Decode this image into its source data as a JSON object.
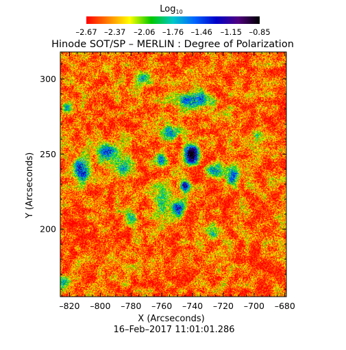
{
  "chart_data": {
    "type": "heatmap",
    "title": "Hinode SOT/SP – MERLIN : Degree of Polarization",
    "xlabel": "X (Arcseconds)",
    "ylabel": "Y (Arcseconds)",
    "date_label": "16–Feb–2017 11:01:01.286",
    "xlim": [
      -826,
      -679
    ],
    "ylim": [
      155,
      318
    ],
    "x_ticks": [
      -820,
      -800,
      -780,
      -760,
      -740,
      -720,
      -700,
      -680
    ],
    "x_tick_labels": [
      "–820",
      "–800",
      "–780",
      "–760",
      "–740",
      "–720",
      "–700",
      "–680"
    ],
    "y_ticks": [
      200,
      250,
      300
    ],
    "y_tick_labels": [
      "200",
      "250",
      "300"
    ],
    "colorbar": {
      "title": "Log",
      "title_subscript": "10",
      "range": [
        -2.67,
        -0.85
      ],
      "tick_values": [
        -2.67,
        -2.37,
        -2.06,
        -1.76,
        -1.46,
        -1.15,
        -0.85
      ],
      "tick_labels": [
        "–2.67",
        "–2.37",
        "–2.06",
        "–1.76",
        "–1.46",
        "–1.15",
        "–0.85"
      ],
      "colormap": [
        "#ff0000",
        "#ff8000",
        "#ffff00",
        "#00c800",
        "#00c8c8",
        "#0064ff",
        "#0000c8",
        "#500080",
        "#000000"
      ]
    },
    "features": [
      {
        "x": -741,
        "y": 250,
        "sx": 3.2,
        "sy": 4.5,
        "amp": 1.85
      },
      {
        "x": -745,
        "y": 229,
        "sx": 2.2,
        "sy": 2.5,
        "amp": 1.3
      },
      {
        "x": -749,
        "y": 214,
        "sx": 2.5,
        "sy": 3.5,
        "amp": 1.3
      },
      {
        "x": -812,
        "y": 240,
        "sx": 4.5,
        "sy": 6,
        "amp": 1.15
      },
      {
        "x": -796,
        "y": 251,
        "sx": 4,
        "sy": 5,
        "amp": 1.05
      },
      {
        "x": -740,
        "y": 286,
        "sx": 8,
        "sy": 4,
        "amp": 1.15
      },
      {
        "x": -754,
        "y": 265,
        "sx": 3.5,
        "sy": 3,
        "amp": 0.95
      },
      {
        "x": -761,
        "y": 246,
        "sx": 3,
        "sy": 3,
        "amp": 1.0
      },
      {
        "x": -714,
        "y": 235,
        "sx": 3,
        "sy": 4.5,
        "amp": 1.0
      },
      {
        "x": -725,
        "y": 240,
        "sx": 4,
        "sy": 3,
        "amp": 0.85
      },
      {
        "x": -821,
        "y": 281,
        "sx": 2.5,
        "sy": 2.5,
        "amp": 0.75
      },
      {
        "x": -823,
        "y": 165,
        "sx": 2.5,
        "sy": 3,
        "amp": 0.85
      },
      {
        "x": -773,
        "y": 300,
        "sx": 4,
        "sy": 3.5,
        "amp": 0.7
      },
      {
        "x": -698,
        "y": 262,
        "sx": 2.5,
        "sy": 2.5,
        "amp": 0.6
      },
      {
        "x": -785,
        "y": 242,
        "sx": 4,
        "sy": 6,
        "amp": 0.7
      },
      {
        "x": -726,
        "y": 198,
        "sx": 4,
        "sy": 4,
        "amp": 0.55
      },
      {
        "x": -760,
        "y": 220,
        "sx": 5,
        "sy": 8,
        "amp": 0.55
      },
      {
        "x": -780,
        "y": 208,
        "sx": 3,
        "sy": 3,
        "amp": 0.5
      }
    ],
    "background_level": -2.5
  }
}
